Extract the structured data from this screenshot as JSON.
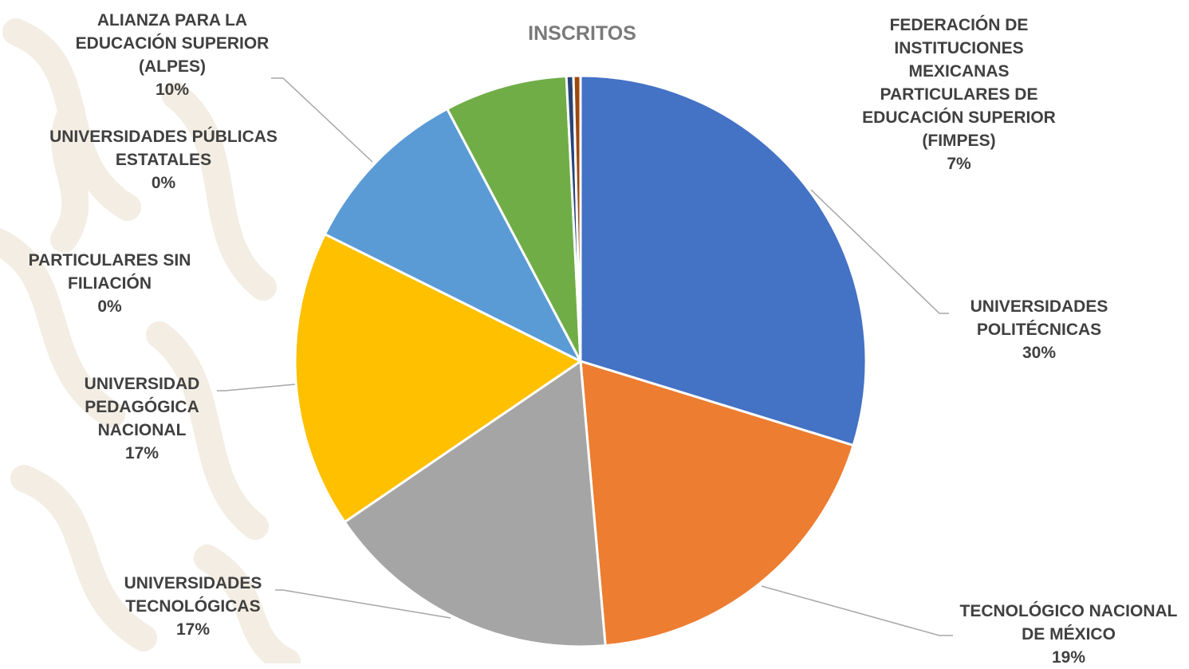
{
  "chart_data": {
    "type": "pie",
    "title": "INSCRITOS",
    "start_angle_deg": 0,
    "direction": "clockwise",
    "slices": [
      {
        "name": "UNIVERSIDADES POLITÉCNICAS",
        "value": 30,
        "label": "30%",
        "color": "#4472C4"
      },
      {
        "name": "TECNOLÓGICO NACIONAL DE MÉXICO",
        "value": 19,
        "label": "19%",
        "color": "#ED7D31"
      },
      {
        "name": "UNIVERSIDADES TECNOLÓGICAS",
        "value": 17,
        "label": "17%",
        "color": "#A5A5A5"
      },
      {
        "name": "UNIVERSIDAD PEDAGÓGICA NACIONAL",
        "value": 17,
        "label": "17%",
        "color": "#FFC000"
      },
      {
        "name": "ALIANZA PARA LA EDUCACIÓN SUPERIOR (ALPES)",
        "value": 10,
        "label": "10%",
        "color": "#5B9BD5"
      },
      {
        "name": "FEDERACIÓN DE INSTITUCIONES MEXICANAS PARTICULARES DE EDUCACIÓN SUPERIOR (FIMPES)",
        "value": 7,
        "label": "7%",
        "color": "#70AD47"
      },
      {
        "name": "UNIVERSIDADES PÚBLICAS ESTATALES",
        "value": 0.4,
        "label": "0%",
        "color": "#264478"
      },
      {
        "name": "PARTICULARES SIN FILIACIÓN",
        "value": 0.4,
        "label": "0%",
        "color": "#9E480E"
      }
    ]
  }
}
